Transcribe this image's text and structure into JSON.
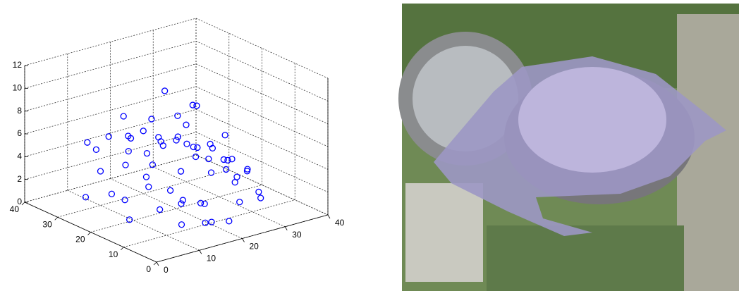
{
  "chart_data": {
    "type": "scatter3d",
    "xlim": [
      0,
      40
    ],
    "ylim": [
      0,
      40
    ],
    "zlim": [
      0,
      12
    ],
    "xticks": [
      0,
      10,
      20,
      30,
      40
    ],
    "yticks": [
      0,
      10,
      20,
      30,
      40
    ],
    "zticks": [
      0,
      2,
      4,
      6,
      8,
      10,
      12
    ],
    "grid": true,
    "color": "#0000ff",
    "x": [
      10,
      12,
      15,
      18,
      20,
      22,
      25,
      28,
      30,
      32,
      8,
      12,
      16,
      20,
      24,
      28,
      32,
      35,
      10,
      14,
      18,
      22,
      26,
      30,
      12,
      16,
      20,
      24,
      28,
      15,
      20,
      25,
      5,
      8,
      30,
      34,
      36,
      20,
      22,
      25,
      18,
      14,
      26,
      30,
      10,
      6,
      32,
      28,
      24,
      20,
      17,
      23,
      27,
      13,
      19,
      31,
      9,
      21,
      33,
      15
    ],
    "y": [
      30,
      25,
      28,
      32,
      30,
      28,
      26,
      24,
      22,
      20,
      20,
      18,
      22,
      24,
      20,
      16,
      14,
      18,
      12,
      14,
      16,
      12,
      10,
      8,
      8,
      6,
      4,
      6,
      12,
      34,
      36,
      34,
      28,
      24,
      30,
      32,
      26,
      18,
      14,
      30,
      10,
      26,
      18,
      28,
      34,
      16,
      10,
      30,
      22,
      20,
      25,
      18,
      14,
      20,
      8,
      24,
      30,
      26,
      20,
      12
    ],
    "z": [
      3,
      4,
      4.5,
      5,
      5.5,
      5,
      5,
      4,
      4,
      3,
      2,
      3,
      4,
      5,
      5,
      4,
      3,
      2,
      2,
      3,
      4,
      4,
      3,
      2,
      1,
      1,
      1,
      2,
      3,
      5,
      6,
      5.5,
      1.5,
      2,
      5,
      6,
      4,
      1,
      1,
      8.5,
      2,
      6,
      4,
      7,
      5,
      1,
      1,
      6,
      5,
      6,
      4.5,
      4.5,
      3.5,
      3.5,
      0.5,
      4,
      5,
      5,
      3,
      2
    ]
  }
}
